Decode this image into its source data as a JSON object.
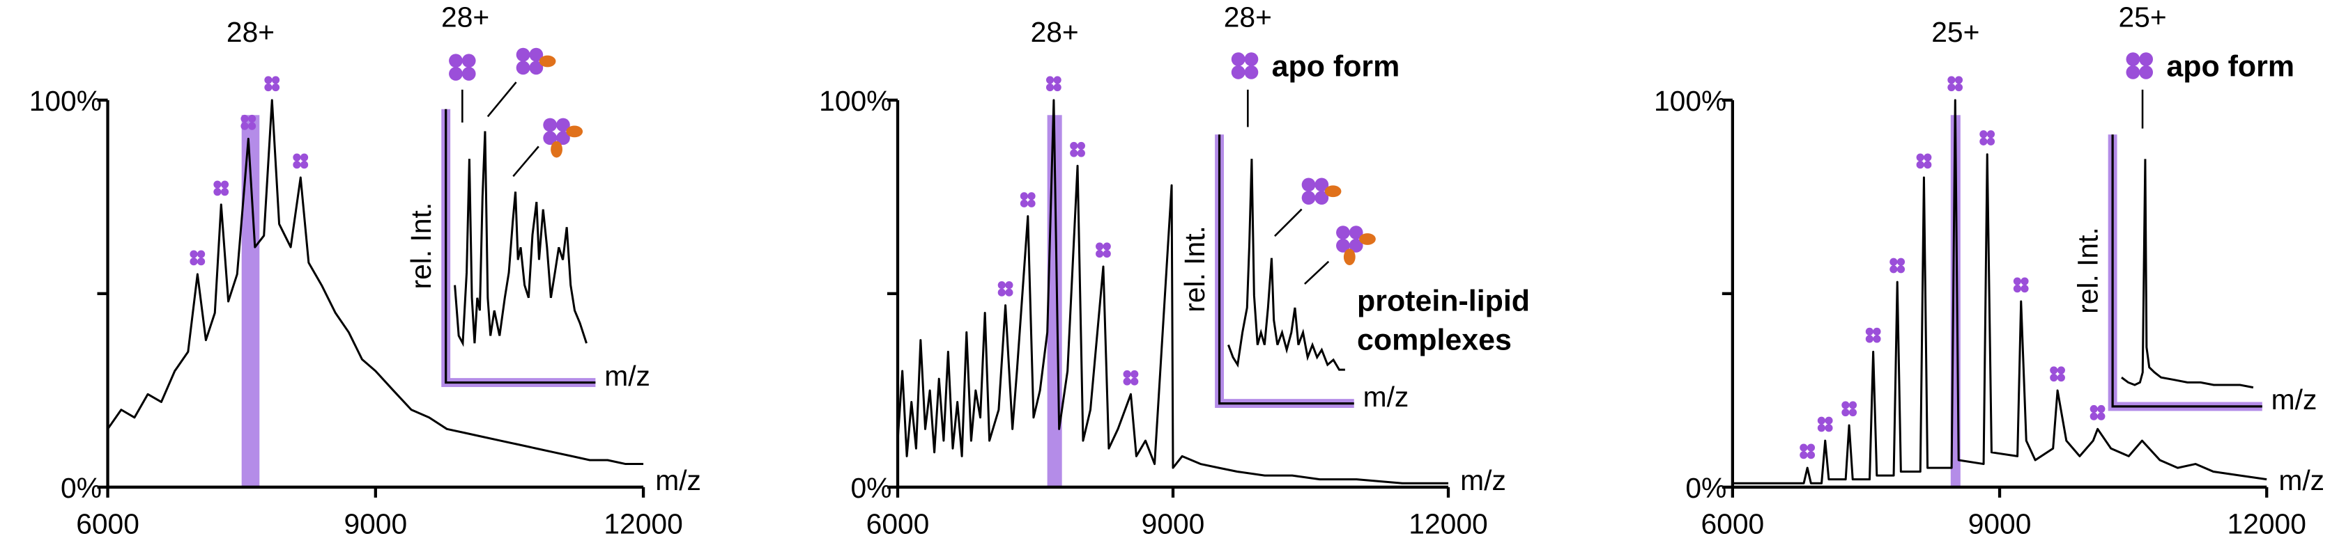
{
  "chart_data": [
    {
      "type": "line",
      "color": "#000000",
      "highlight_color": "#b48ce8",
      "marker_color": "#9b4fd9",
      "xlim": [
        6000,
        12000
      ],
      "xticks": [
        6000,
        9000,
        12000
      ],
      "xlabel": "m/z",
      "ylim": [
        0,
        100
      ],
      "yticks": [
        {
          "value": 0,
          "label": "0%"
        },
        {
          "value": 100,
          "label": "100%"
        }
      ],
      "yminorticks": [
        50
      ],
      "charge_label": "28+",
      "highlight": [
        7500,
        7700
      ],
      "markers": [
        7005,
        7270,
        7575,
        7840,
        8160
      ],
      "x": [
        6000,
        6150,
        6300,
        6450,
        6600,
        6750,
        6900,
        7005,
        7100,
        7200,
        7270,
        7350,
        7450,
        7575,
        7650,
        7750,
        7840,
        7920,
        8050,
        8160,
        8250,
        8400,
        8550,
        8700,
        8850,
        9000,
        9200,
        9400,
        9600,
        9800,
        10000,
        10200,
        10400,
        10600,
        10800,
        11000,
        11200,
        11400,
        11600,
        11800,
        12000
      ],
      "values": [
        15,
        20,
        18,
        24,
        22,
        30,
        35,
        55,
        38,
        45,
        73,
        48,
        55,
        90,
        62,
        65,
        100,
        68,
        62,
        80,
        58,
        52,
        45,
        40,
        33,
        30,
        25,
        20,
        18,
        15,
        14,
        13,
        12,
        11,
        10,
        9,
        8,
        7,
        7,
        6,
        6
      ],
      "inset": {
        "charge_label": "28+",
        "ylabel": "rel. Int.",
        "xlabel": "m/z",
        "x": [
          0,
          3,
          6,
          9,
          11,
          13,
          15,
          17,
          19,
          21,
          23,
          25,
          27,
          30,
          34,
          38,
          41,
          44,
          46,
          48,
          50,
          53,
          56,
          59,
          62,
          64,
          67,
          70,
          73,
          76,
          79,
          82,
          85,
          88,
          91,
          95,
          100
        ],
        "values": [
          35,
          15,
          12,
          40,
          85,
          30,
          12,
          30,
          25,
          70,
          96,
          30,
          15,
          25,
          15,
          30,
          40,
          60,
          72,
          45,
          50,
          35,
          30,
          55,
          68,
          45,
          65,
          50,
          30,
          40,
          50,
          45,
          58,
          35,
          25,
          20,
          12
        ]
      }
    },
    {
      "type": "line",
      "color": "#000000",
      "highlight_color": "#b48ce8",
      "marker_color": "#9b4fd9",
      "xlim": [
        6000,
        12000
      ],
      "xticks": [
        6000,
        9000,
        12000
      ],
      "xlabel": "m/z",
      "ylim": [
        0,
        100
      ],
      "yticks": [
        {
          "value": 0,
          "label": "0%"
        },
        {
          "value": 100,
          "label": "100%"
        }
      ],
      "yminorticks": [
        50
      ],
      "charge_label": "28+",
      "highlight": [
        7630,
        7790
      ],
      "markers": [
        7174,
        7418,
        7700,
        7960,
        8240,
        8540
      ],
      "x": [
        6000,
        6050,
        6100,
        6150,
        6200,
        6250,
        6300,
        6350,
        6400,
        6450,
        6500,
        6550,
        6600,
        6650,
        6700,
        6750,
        6800,
        6850,
        6900,
        6950,
        7000,
        7100,
        7174,
        7250,
        7300,
        7418,
        7480,
        7550,
        7630,
        7700,
        7760,
        7850,
        7960,
        8020,
        8100,
        8240,
        8300,
        8400,
        8540,
        8600,
        8700,
        8800,
        8985,
        9000,
        9100,
        9300,
        9500,
        9700,
        10000,
        10300,
        10600,
        11000,
        11500,
        12000
      ],
      "values": [
        12,
        30,
        8,
        22,
        10,
        38,
        15,
        25,
        9,
        28,
        12,
        35,
        10,
        22,
        8,
        40,
        12,
        25,
        18,
        45,
        12,
        20,
        47,
        15,
        30,
        70,
        18,
        25,
        40,
        100,
        15,
        30,
        83,
        12,
        20,
        57,
        10,
        15,
        24,
        8,
        12,
        6,
        78,
        5,
        8,
        6,
        5,
        4,
        3,
        3,
        2,
        2,
        1,
        1
      ],
      "inset": {
        "charge_label": "28+",
        "ylabel": "rel. Int.",
        "xlabel": "m/z",
        "apo_label": "apo form",
        "complex_label": [
          "protein-lipid",
          "complexes"
        ],
        "x": [
          0,
          4,
          8,
          12,
          16,
          18,
          20,
          22,
          25,
          28,
          31,
          34,
          37,
          39,
          42,
          46,
          50,
          54,
          57,
          60,
          64,
          68,
          72,
          76,
          80,
          85,
          90,
          95,
          100
        ],
        "values": [
          20,
          15,
          12,
          25,
          35,
          60,
          95,
          40,
          20,
          25,
          20,
          35,
          55,
          30,
          20,
          25,
          18,
          25,
          35,
          20,
          25,
          15,
          20,
          15,
          18,
          12,
          14,
          10,
          10
        ]
      }
    },
    {
      "type": "line",
      "color": "#000000",
      "highlight_color": "#b48ce8",
      "marker_color": "#9b4fd9",
      "xlim": [
        6000,
        12000
      ],
      "xticks": [
        6000,
        9000,
        12000
      ],
      "xlabel": "m/z",
      "ylim": [
        0,
        100
      ],
      "yticks": [
        {
          "value": 0,
          "label": "0%"
        },
        {
          "value": 100,
          "label": "100%"
        }
      ],
      "yminorticks": [
        50
      ],
      "charge_label": "25+",
      "highlight": [
        8450,
        8560
      ],
      "markers": [
        6840,
        7040,
        7310,
        7580,
        7850,
        8150,
        8500,
        8860,
        9240,
        9650,
        10100
      ],
      "x": [
        6000,
        6500,
        6800,
        6840,
        6880,
        7000,
        7040,
        7080,
        7270,
        7310,
        7350,
        7540,
        7580,
        7620,
        7810,
        7850,
        7890,
        8110,
        8150,
        8190,
        8460,
        8500,
        8540,
        8820,
        8860,
        8910,
        9200,
        9240,
        9300,
        9400,
        9600,
        9650,
        9750,
        9900,
        10050,
        10100,
        10250,
        10450,
        10600,
        10800,
        11000,
        11200,
        11400,
        11700,
        12000
      ],
      "values": [
        1,
        1,
        1,
        5,
        1,
        1,
        12,
        2,
        2,
        16,
        2,
        2,
        35,
        3,
        3,
        53,
        4,
        4,
        80,
        5,
        5,
        100,
        7,
        6,
        86,
        9,
        8,
        48,
        12,
        7,
        10,
        25,
        12,
        8,
        12,
        15,
        10,
        8,
        12,
        7,
        5,
        6,
        4,
        3,
        2
      ],
      "inset": {
        "charge_label": "25+",
        "ylabel": "rel. Int.",
        "xlabel": "m/z",
        "apo_label": "apo form",
        "x": [
          0,
          5,
          10,
          14,
          16,
          18,
          19,
          21,
          25,
          30,
          40,
          50,
          60,
          70,
          80,
          90,
          100
        ],
        "values": [
          8,
          6,
          5,
          6,
          10,
          95,
          20,
          12,
          10,
          8,
          7,
          6,
          6,
          5,
          5,
          5,
          4
        ]
      }
    }
  ]
}
